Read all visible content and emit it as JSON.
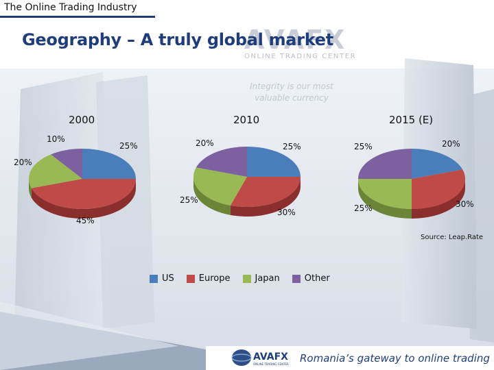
{
  "header": {
    "label": "The Online Trading Industry"
  },
  "title": "Geography – A truly global market",
  "watermark": {
    "logo": "AVAFX",
    "subtitle": "ONLINE TRADING CENTER",
    "slogan": "Integrity is our most valuable currency"
  },
  "colors": {
    "US": "#4a7ebb",
    "Europe": "#be4b48",
    "Japan": "#98b954",
    "Other": "#7d60a0",
    "brand": "#1f3d7a"
  },
  "chart_data": [
    {
      "type": "pie",
      "title": "2000",
      "categories": [
        "US",
        "Europe",
        "Japan",
        "Other"
      ],
      "values": [
        25,
        45,
        20,
        10
      ],
      "labels": [
        "25%",
        "45%",
        "20%",
        "10%"
      ]
    },
    {
      "type": "pie",
      "title": "2010",
      "categories": [
        "US",
        "Europe",
        "Japan",
        "Other"
      ],
      "values": [
        25,
        30,
        25,
        20
      ],
      "labels": [
        "25%",
        "30%",
        "25%",
        "20%"
      ]
    },
    {
      "type": "pie",
      "title": "2015 (E)",
      "categories": [
        "US",
        "Europe",
        "Japan",
        "Other"
      ],
      "values": [
        20,
        30,
        25,
        25
      ],
      "labels": [
        "20%",
        "30%",
        "25%",
        "25%"
      ]
    }
  ],
  "legend": [
    "US",
    "Europe",
    "Japan",
    "Other"
  ],
  "source": "Source: Leap.Rate",
  "footer": {
    "logo": "AVAFX",
    "logo_sub": "ONLINE TRADING CENTER",
    "tagline": "Romania’s gateway to online trading"
  }
}
